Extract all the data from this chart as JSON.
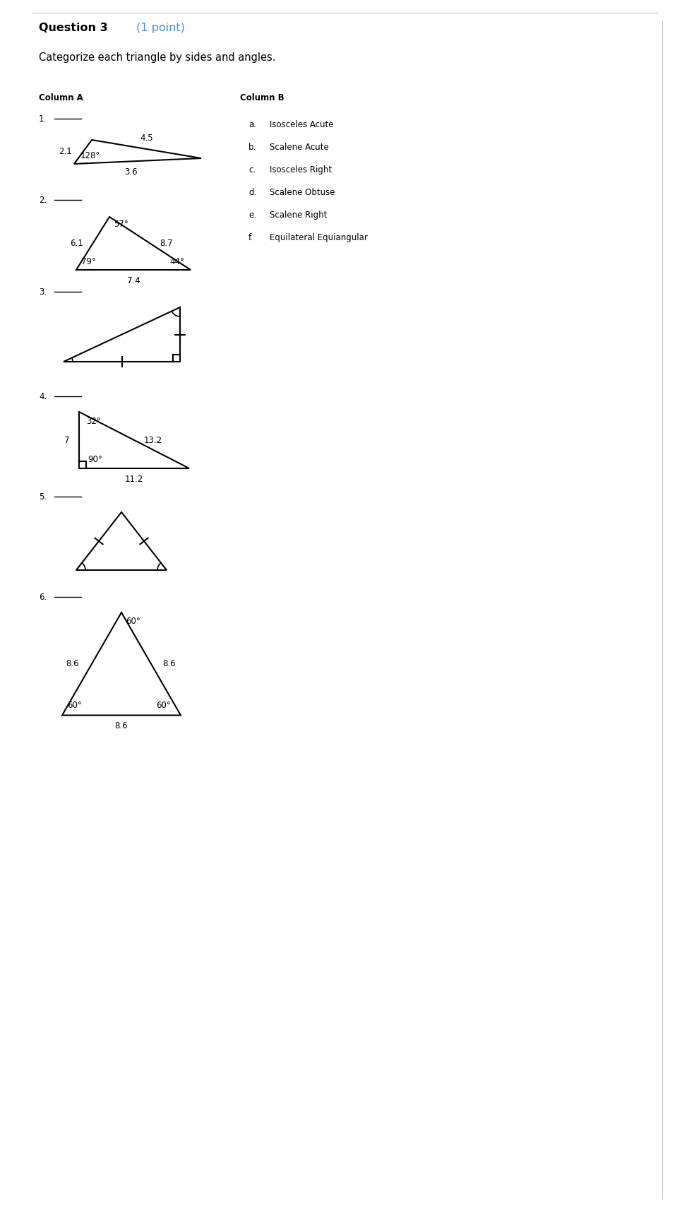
{
  "title": "Question 3",
  "title_suffix": " (1 point)",
  "subtitle": "Categorize each triangle by sides and angles.",
  "col_a_label": "Column A",
  "col_b_label": "Column B",
  "col_b_items": [
    "Isosceles Acute",
    "Scalene Acute",
    "Isosceles Right",
    "Scalene Obtuse",
    "Scalene Right",
    "Equilateral Equiangular"
  ],
  "col_b_letters": [
    "a.",
    "b.",
    "c.",
    "d.",
    "e.",
    "f."
  ],
  "bg_color": "#ffffff",
  "question_color": "#4a90d9",
  "fig_width": 9.76,
  "fig_height": 17.27,
  "dpi": 100
}
